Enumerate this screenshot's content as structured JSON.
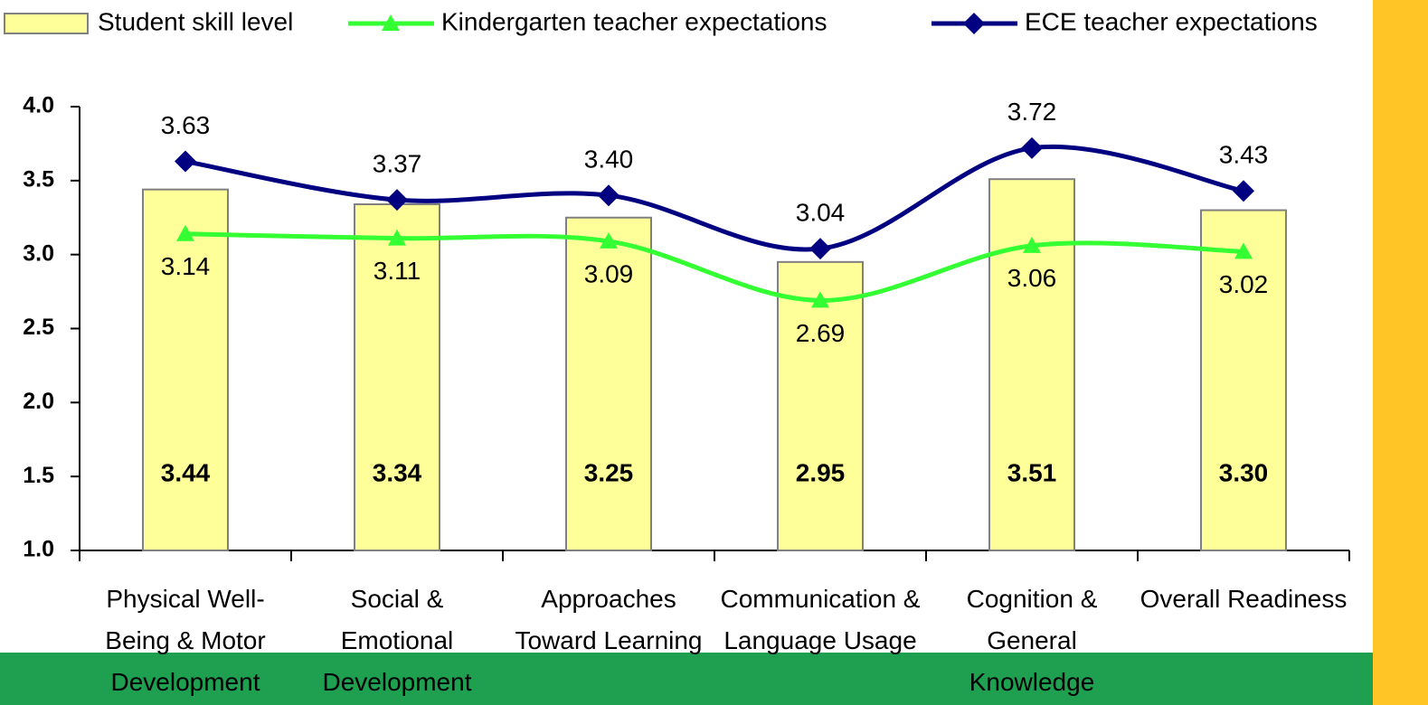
{
  "chart_data": {
    "type": "bar-line",
    "categories": [
      "Physical Well-Being & Motor Development",
      "Social & Emotional Development",
      "Approaches Toward Learning",
      "Communication & Language Usage",
      "Cognition & General Knowledge",
      "Overall Readiness"
    ],
    "series": [
      {
        "name": "Student skill level",
        "type": "bar",
        "color": "#ffff99",
        "values": [
          3.44,
          3.34,
          3.25,
          2.95,
          3.51,
          3.3
        ],
        "value_labels": [
          "3.44",
          "3.34",
          "3.25",
          "2.95",
          "3.51",
          "3.30"
        ]
      },
      {
        "name": "Kindergarten teacher expectations",
        "type": "line",
        "marker": "triangle",
        "color": "#33ff33",
        "values": [
          3.14,
          3.11,
          3.09,
          2.69,
          3.06,
          3.02
        ],
        "value_labels": [
          "3.14",
          "3.11",
          "3.09",
          "2.69",
          "3.06",
          "3.02"
        ]
      },
      {
        "name": "ECE teacher expectations",
        "type": "line",
        "marker": "diamond",
        "color": "#000080",
        "values": [
          3.63,
          3.37,
          3.4,
          3.04,
          3.72,
          3.43
        ],
        "value_labels": [
          "3.63",
          "3.37",
          "3.40",
          "3.04",
          "3.72",
          "3.43"
        ]
      }
    ],
    "ylim": [
      1,
      4
    ],
    "yticks": [
      {
        "value": 1,
        "label": "1.0"
      },
      {
        "value": 1.5,
        "label": "1.5"
      },
      {
        "value": 2,
        "label": "2.0"
      },
      {
        "value": 2.5,
        "label": "2.5"
      },
      {
        "value": 3,
        "label": "3.0"
      },
      {
        "value": 3.5,
        "label": "3.5"
      },
      {
        "value": 4,
        "label": "4.0"
      }
    ],
    "legend": "top"
  }
}
